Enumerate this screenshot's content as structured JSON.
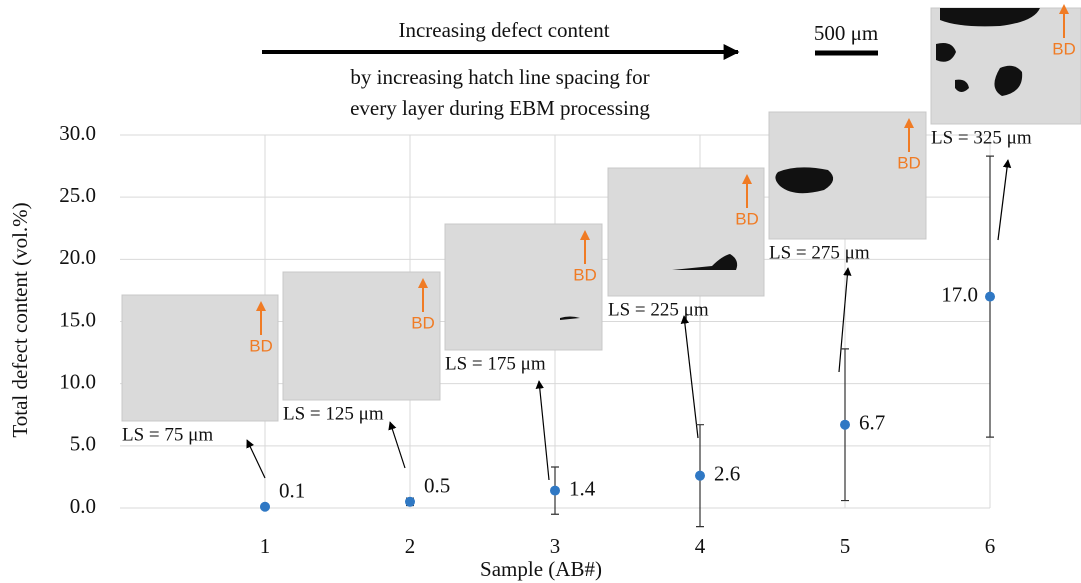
{
  "chart_data": {
    "type": "scatter",
    "x_label": "Sample (AB#)",
    "y_label": "Total defect content (vol.%)",
    "annotations": [
      "Increasing defect content",
      "by increasing hatch line spacing for",
      "every layer during EBM processing"
    ],
    "scale_bar": "500 μm",
    "x": [
      1,
      2,
      3,
      4,
      5,
      6
    ],
    "values": [
      0.1,
      0.5,
      1.4,
      2.6,
      6.7,
      17.0
    ],
    "value_labels": [
      "0.1",
      "0.5",
      "1.4",
      "2.6",
      "6.7",
      "17.0"
    ],
    "errors": [
      0.1,
      0.3,
      1.9,
      4.1,
      6.1,
      11.3
    ],
    "color": "#2f78c4",
    "xlim": [
      0,
      6
    ],
    "xticks": [
      1,
      2,
      3,
      4,
      5,
      6
    ],
    "ylim": [
      0,
      30
    ],
    "yticks": [
      {
        "value": 0,
        "label": "0.0"
      },
      {
        "value": 5,
        "label": "5.0"
      },
      {
        "value": 10,
        "label": "10.0"
      },
      {
        "value": 15,
        "label": "15.0"
      },
      {
        "value": 20,
        "label": "20.0"
      },
      {
        "value": 25,
        "label": "25.0"
      },
      {
        "value": 30,
        "label": "30.0"
      }
    ],
    "grid": true,
    "insets": [
      {
        "label": "LS = 75 μm",
        "direction": "BD"
      },
      {
        "label": "LS = 125 μm",
        "direction": "BD"
      },
      {
        "label": "LS = 175 μm",
        "direction": "BD"
      },
      {
        "label": "LS = 225 μm",
        "direction": "BD"
      },
      {
        "label": "LS = 275 μm",
        "direction": "BD"
      },
      {
        "label": "LS = 325 μm",
        "direction": "BD"
      }
    ]
  }
}
